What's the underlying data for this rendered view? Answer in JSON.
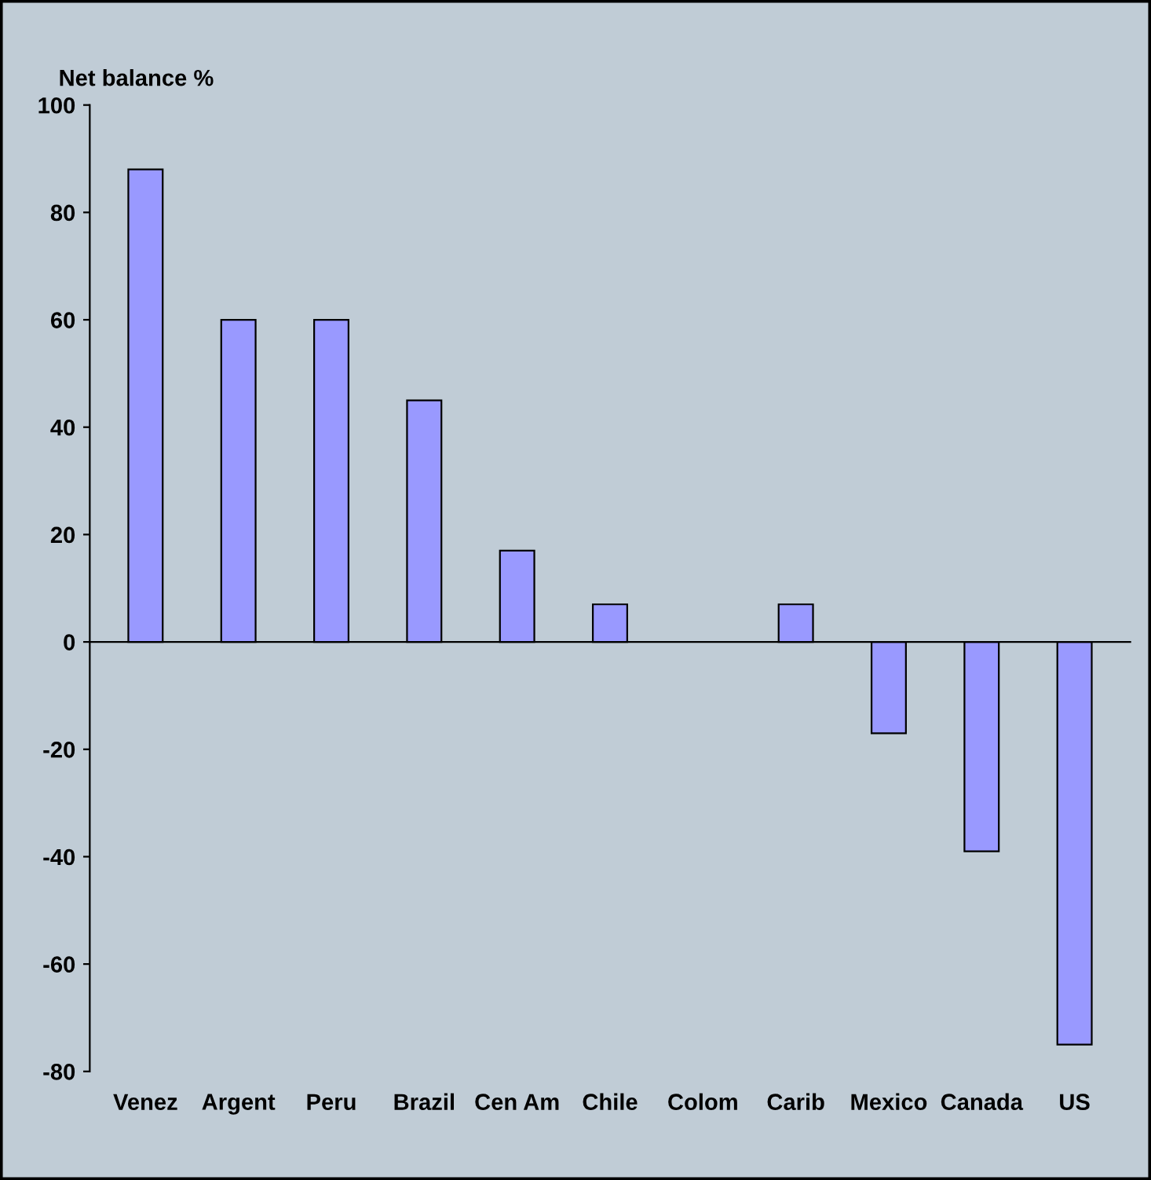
{
  "chart_data": {
    "type": "bar",
    "ylabel": "Net balance %",
    "categories": [
      "Venez",
      "Argent",
      "Peru",
      "Brazil",
      "Cen Am",
      "Chile",
      "Colom",
      "Carib",
      "Mexico",
      "Canada",
      "US"
    ],
    "values": [
      88,
      60,
      60,
      45,
      17,
      7,
      null,
      7,
      -17,
      -39,
      -75
    ],
    "color": "#9999ff",
    "ylim": [
      -80,
      100
    ],
    "yticks": [
      -80,
      -60,
      -40,
      -20,
      0,
      20,
      40,
      60,
      80,
      100
    ]
  }
}
